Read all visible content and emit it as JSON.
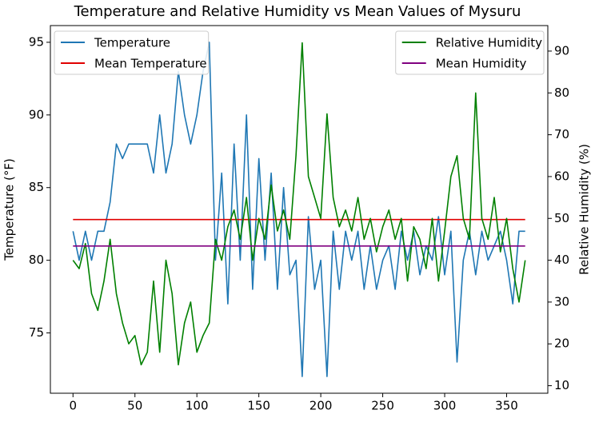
{
  "chart_data": {
    "type": "line",
    "title": "Temperature and Relative Humidity vs Mean Values of Mysuru",
    "ylabel": "Temperature (°F)",
    "y2label": "Relative Humidity (%)",
    "xlim": [
      -18.25,
      383.25
    ],
    "xticks": [
      0,
      50,
      100,
      150,
      200,
      250,
      300,
      350
    ],
    "ylim": [
      70.85,
      96.15
    ],
    "yticks": [
      75,
      80,
      85,
      90,
      95
    ],
    "y2lim": [
      8.2,
      96.1
    ],
    "y2ticks": [
      10,
      20,
      30,
      40,
      50,
      60,
      70,
      80,
      90
    ],
    "legend": {
      "y": "upper left",
      "y2": "upper right"
    },
    "series": [
      {
        "name": "Temperature",
        "color": "#1f77b4",
        "axis": "y",
        "x": [
          0,
          5,
          10,
          15,
          20,
          25,
          30,
          35,
          40,
          45,
          50,
          55,
          60,
          65,
          70,
          75,
          80,
          85,
          90,
          95,
          100,
          105,
          110,
          115,
          120,
          125,
          130,
          135,
          140,
          145,
          150,
          155,
          160,
          165,
          170,
          175,
          180,
          185,
          190,
          195,
          200,
          205,
          210,
          215,
          220,
          225,
          230,
          235,
          240,
          245,
          250,
          255,
          260,
          265,
          270,
          275,
          280,
          285,
          290,
          295,
          300,
          305,
          310,
          315,
          320,
          325,
          330,
          335,
          340,
          345,
          350,
          355,
          360,
          365
        ],
        "values": [
          82,
          80,
          82,
          80,
          82,
          82,
          84,
          88,
          87,
          88,
          88,
          88,
          88,
          86,
          90,
          86,
          88,
          93,
          90,
          88,
          90,
          93,
          95,
          80,
          86,
          77,
          88,
          80,
          90,
          78,
          87,
          80,
          86,
          78,
          85,
          79,
          80,
          72,
          83,
          78,
          80,
          72,
          82,
          78,
          82,
          80,
          82,
          78,
          81,
          78,
          80,
          81,
          78,
          82,
          80,
          82,
          79,
          81,
          80,
          83,
          79,
          82,
          73,
          80,
          82,
          79,
          82,
          80,
          81,
          82,
          80,
          77,
          82,
          82
        ]
      },
      {
        "name": "Mean Temperature",
        "color": "#e00000",
        "axis": "y",
        "x": [
          0,
          365
        ],
        "values": [
          82.8,
          82.8
        ]
      },
      {
        "name": "Relative Humidity",
        "color": "#008000",
        "axis": "y2",
        "x": [
          0,
          5,
          10,
          15,
          20,
          25,
          30,
          35,
          40,
          45,
          50,
          55,
          60,
          65,
          70,
          75,
          80,
          85,
          90,
          95,
          100,
          105,
          110,
          115,
          120,
          125,
          130,
          135,
          140,
          145,
          150,
          155,
          160,
          165,
          170,
          175,
          180,
          185,
          190,
          195,
          200,
          205,
          210,
          215,
          220,
          225,
          230,
          235,
          240,
          245,
          250,
          255,
          260,
          265,
          270,
          275,
          280,
          285,
          290,
          295,
          300,
          305,
          310,
          315,
          320,
          325,
          330,
          335,
          340,
          345,
          350,
          355,
          360,
          365
        ],
        "values": [
          40,
          38,
          44,
          32,
          28,
          35,
          45,
          32,
          25,
          20,
          22,
          15,
          18,
          35,
          18,
          40,
          32,
          15,
          25,
          30,
          18,
          22,
          25,
          45,
          40,
          48,
          52,
          45,
          55,
          40,
          50,
          45,
          58,
          47,
          52,
          45,
          65,
          92,
          60,
          55,
          50,
          75,
          55,
          48,
          52,
          47,
          55,
          45,
          50,
          42,
          48,
          52,
          45,
          50,
          35,
          48,
          45,
          38,
          50,
          35,
          47,
          60,
          65,
          50,
          45,
          80,
          50,
          45,
          55,
          42,
          50,
          38,
          30,
          40
        ]
      },
      {
        "name": "Mean Humidity",
        "color": "#800080",
        "axis": "y2",
        "x": [
          0,
          365
        ],
        "values": [
          43.4,
          43.4
        ]
      }
    ]
  }
}
